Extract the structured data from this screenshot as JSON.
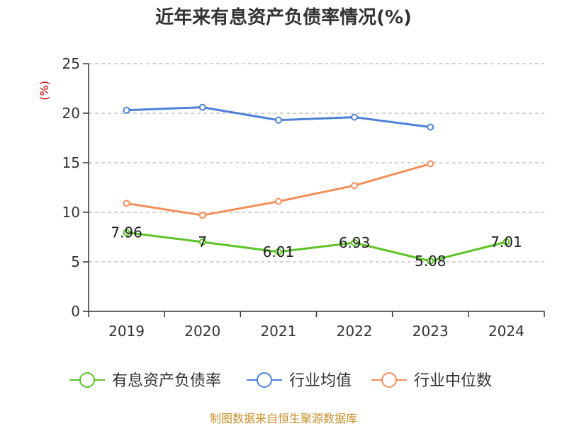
{
  "chart_data": {
    "type": "line",
    "title": "近年来有息资产负债率情况(%)",
    "ylabel": "(%)",
    "categories": [
      "2019",
      "2020",
      "2021",
      "2022",
      "2023",
      "2024"
    ],
    "yticks": [
      "0",
      "5",
      "10",
      "15",
      "20",
      "25"
    ],
    "ylim": [
      0,
      25
    ],
    "grid": true,
    "legend_position": "bottom",
    "series": [
      {
        "name": "有息资产负债率",
        "color": "#5cc425",
        "values": [
          7.96,
          7.0,
          6.01,
          6.93,
          5.08,
          7.01
        ],
        "labels": [
          "7.96",
          "7",
          "6.01",
          "6.93",
          "5.08",
          "7.01"
        ]
      },
      {
        "name": "行业均值",
        "color": "#4e80d8",
        "values": [
          20.3,
          20.6,
          19.3,
          19.6,
          18.6,
          null
        ]
      },
      {
        "name": "行业中位数",
        "color": "#f58e59",
        "values": [
          10.9,
          9.7,
          11.1,
          12.7,
          14.9,
          null
        ]
      }
    ]
  },
  "source": "制图数据来自恒生聚源数据库"
}
